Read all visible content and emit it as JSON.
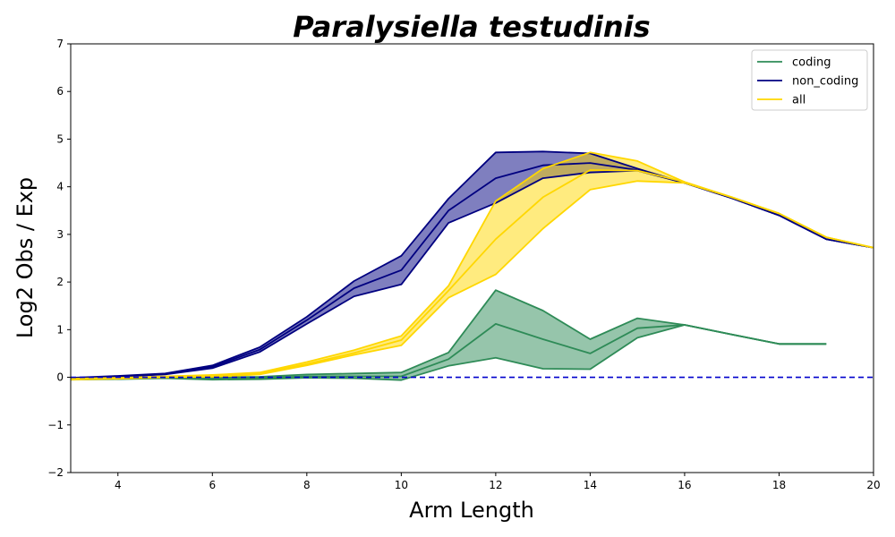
{
  "chart_data": {
    "type": "line",
    "title": "Paralysiella testudinis",
    "xlabel": "Arm Length",
    "ylabel": "Log2 Obs / Exp",
    "xlim": [
      3,
      20
    ],
    "ylim": [
      -2,
      7
    ],
    "xticks": [
      4,
      6,
      8,
      10,
      12,
      14,
      16,
      18,
      20
    ],
    "yticks": [
      -2,
      -1,
      0,
      1,
      2,
      3,
      4,
      5,
      6,
      7
    ],
    "reference_line": {
      "y": 0,
      "style": "dashed",
      "color": "#0000cc"
    },
    "legend_position": "top-right",
    "series": [
      {
        "name": "coding",
        "color": "#2e8b57",
        "x": [
          3,
          4,
          5,
          6,
          7,
          8,
          9,
          10,
          11,
          12,
          13,
          14,
          15,
          16,
          17,
          18,
          19
        ],
        "mean": [
          -0.03,
          -0.02,
          0.0,
          -0.02,
          -0.01,
          0.02,
          0.02,
          0.02,
          0.38,
          1.12,
          0.8,
          0.5,
          1.03,
          1.1,
          0.9,
          0.7,
          0.7
        ],
        "upper": [
          -0.02,
          -0.01,
          0.01,
          0.0,
          0.01,
          0.06,
          0.08,
          0.1,
          0.52,
          1.83,
          1.4,
          0.8,
          1.24,
          1.1,
          0.9,
          0.7,
          0.7
        ],
        "lower": [
          -0.05,
          -0.04,
          -0.02,
          -0.05,
          -0.04,
          -0.01,
          -0.02,
          -0.06,
          0.24,
          0.41,
          0.18,
          0.17,
          0.83,
          1.1,
          0.9,
          0.7,
          0.7
        ]
      },
      {
        "name": "non_coding",
        "color": "#000080",
        "x": [
          3,
          4,
          5,
          6,
          7,
          8,
          9,
          10,
          11,
          12,
          13,
          14,
          15,
          16,
          17,
          18,
          19,
          20
        ],
        "mean": [
          -0.02,
          0.02,
          0.07,
          0.22,
          0.58,
          1.2,
          1.87,
          2.25,
          3.5,
          4.18,
          4.45,
          4.5,
          4.35,
          4.08,
          3.76,
          3.4,
          2.9,
          2.72
        ],
        "upper": [
          -0.01,
          0.03,
          0.08,
          0.25,
          0.63,
          1.27,
          2.02,
          2.55,
          3.75,
          4.72,
          4.74,
          4.7,
          4.38,
          4.08,
          3.76,
          3.4,
          2.9,
          2.72
        ],
        "lower": [
          -0.03,
          0.01,
          0.06,
          0.19,
          0.53,
          1.12,
          1.7,
          1.95,
          3.24,
          3.66,
          4.18,
          4.3,
          4.34,
          4.08,
          3.76,
          3.4,
          2.9,
          2.72
        ]
      },
      {
        "name": "all",
        "color": "#ffd700",
        "x": [
          3,
          4,
          5,
          6,
          7,
          8,
          9,
          10,
          11,
          12,
          13,
          14,
          15,
          16,
          17,
          18,
          19,
          20
        ],
        "mean": [
          -0.04,
          -0.02,
          0.01,
          0.03,
          0.08,
          0.28,
          0.51,
          0.78,
          1.82,
          2.9,
          3.78,
          4.35,
          4.34,
          4.1,
          3.78,
          3.44,
          2.94,
          2.72
        ],
        "upper": [
          -0.03,
          -0.01,
          0.02,
          0.05,
          0.1,
          0.32,
          0.57,
          0.87,
          1.92,
          3.7,
          4.38,
          4.72,
          4.54,
          4.1,
          3.78,
          3.44,
          2.94,
          2.72
        ],
        "lower": [
          -0.05,
          -0.03,
          0.0,
          0.01,
          0.06,
          0.25,
          0.47,
          0.67,
          1.67,
          2.16,
          3.12,
          3.94,
          4.12,
          4.08,
          3.78,
          3.44,
          2.94,
          2.72
        ]
      }
    ]
  }
}
